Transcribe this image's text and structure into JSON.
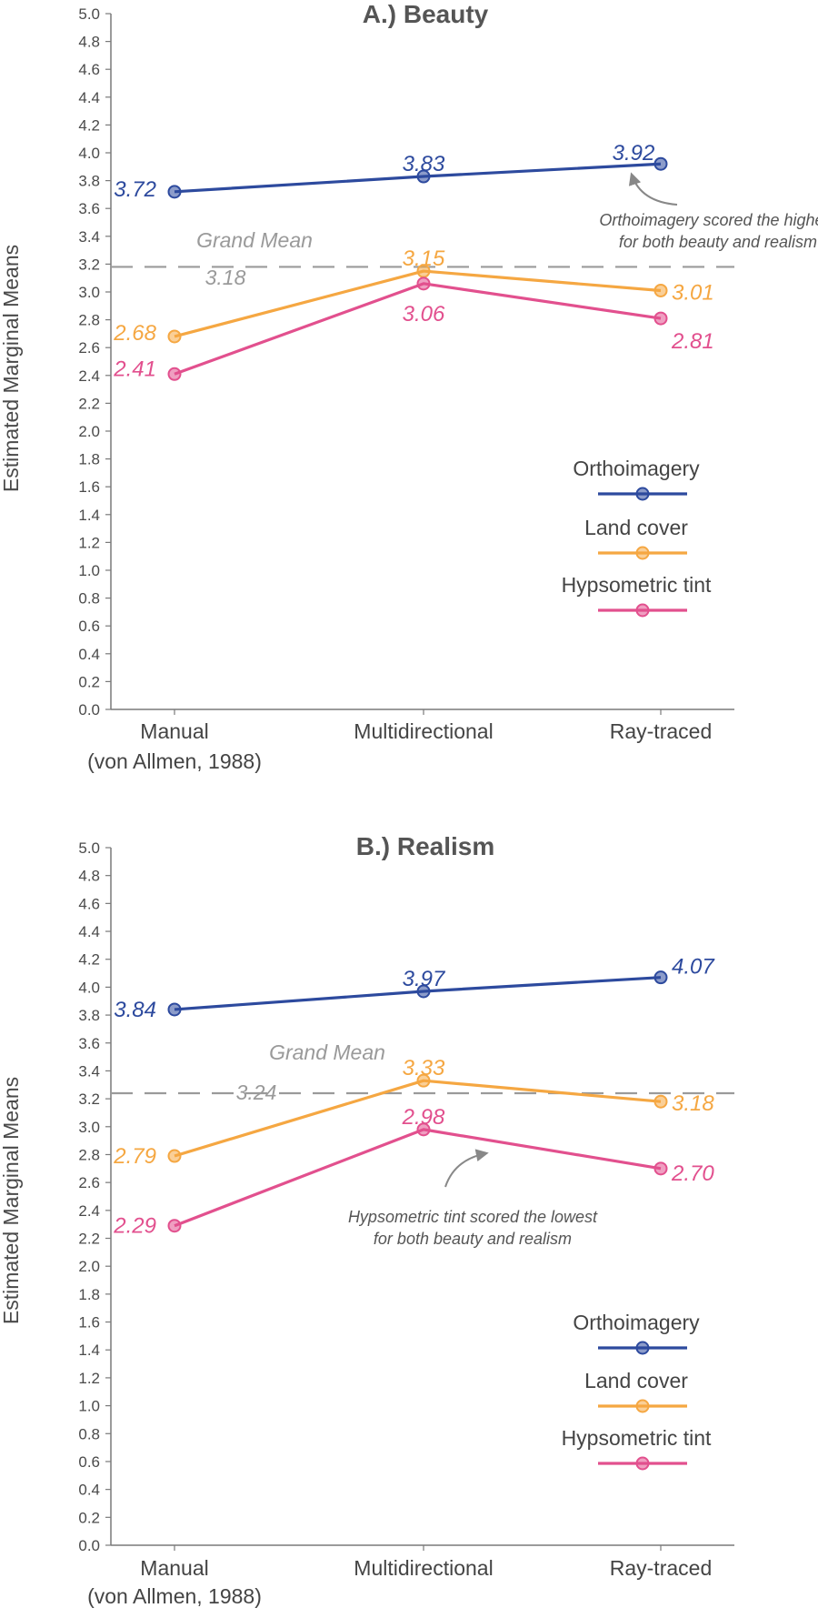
{
  "chart_data": [
    {
      "type": "line",
      "title": "A.) Beauty",
      "ylabel": "Estimated Marginal Means",
      "xlabel": "",
      "ylim": [
        0,
        5
      ],
      "y_ticks": [
        "0.0",
        "0.2",
        "0.4",
        "0.6",
        "0.8",
        "1.0",
        "1.2",
        "1.4",
        "1.6",
        "1.8",
        "2.0",
        "2.2",
        "2.4",
        "2.6",
        "2.8",
        "3.0",
        "3.2",
        "3.4",
        "3.6",
        "3.8",
        "4.0",
        "4.2",
        "4.4",
        "4.6",
        "4.8",
        "5.0"
      ],
      "categories": [
        [
          "Manual",
          "(von Allmen, 1988)"
        ],
        [
          "Multidirectional"
        ],
        [
          "Ray-traced"
        ]
      ],
      "series": [
        {
          "name": "Orthoimagery",
          "color": "#2d4a9e",
          "values": [
            3.72,
            3.83,
            3.92
          ],
          "labels": [
            "3.72",
            "3.83",
            "3.92"
          ]
        },
        {
          "name": "Land cover",
          "color": "#f5a742",
          "values": [
            2.68,
            3.15,
            3.01
          ],
          "labels": [
            "2.68",
            "3.15",
            "3.01"
          ]
        },
        {
          "name": "Hypsometric tint",
          "color": "#e2508e",
          "values": [
            2.41,
            3.06,
            2.81
          ],
          "labels": [
            "2.41",
            "3.06",
            "2.81"
          ]
        }
      ],
      "grand_mean": {
        "label": "Grand Mean",
        "value": 3.18,
        "value_label": "3.18"
      },
      "annotation": {
        "lines": [
          "Orthoimagery scored the highest",
          "for both beauty and realism"
        ]
      },
      "legend": "bottom-right",
      "grid": false
    },
    {
      "type": "line",
      "title": "B.) Realism",
      "ylabel": "Estimated Marginal Means",
      "xlabel": "",
      "ylim": [
        0,
        5
      ],
      "y_ticks": [
        "0.0",
        "0.2",
        "0.4",
        "0.6",
        "0.8",
        "1.0",
        "1.2",
        "1.4",
        "1.6",
        "1.8",
        "2.0",
        "2.2",
        "2.4",
        "2.6",
        "2.8",
        "3.0",
        "3.2",
        "3.4",
        "3.6",
        "3.8",
        "4.0",
        "4.2",
        "4.4",
        "4.6",
        "4.8",
        "5.0"
      ],
      "categories": [
        [
          "Manual",
          "(von Allmen, 1988)"
        ],
        [
          "Multidirectional"
        ],
        [
          "Ray-traced"
        ]
      ],
      "series": [
        {
          "name": "Orthoimagery",
          "color": "#2d4a9e",
          "values": [
            3.84,
            3.97,
            4.07
          ],
          "labels": [
            "3.84",
            "3.97",
            "4.07"
          ]
        },
        {
          "name": "Land cover",
          "color": "#f5a742",
          "values": [
            2.79,
            3.33,
            3.18
          ],
          "labels": [
            "2.79",
            "3.33",
            "3.18"
          ]
        },
        {
          "name": "Hypsometric tint",
          "color": "#e2508e",
          "values": [
            2.29,
            2.98,
            2.7
          ],
          "labels": [
            "2.29",
            "2.98",
            "2.70"
          ]
        }
      ],
      "grand_mean": {
        "label": "Grand Mean",
        "value": 3.24,
        "value_label": "3.24"
      },
      "annotation": {
        "lines": [
          "Hypsometric tint scored the lowest",
          "for both beauty and realism"
        ]
      },
      "legend": "bottom-right",
      "grid": false
    }
  ]
}
